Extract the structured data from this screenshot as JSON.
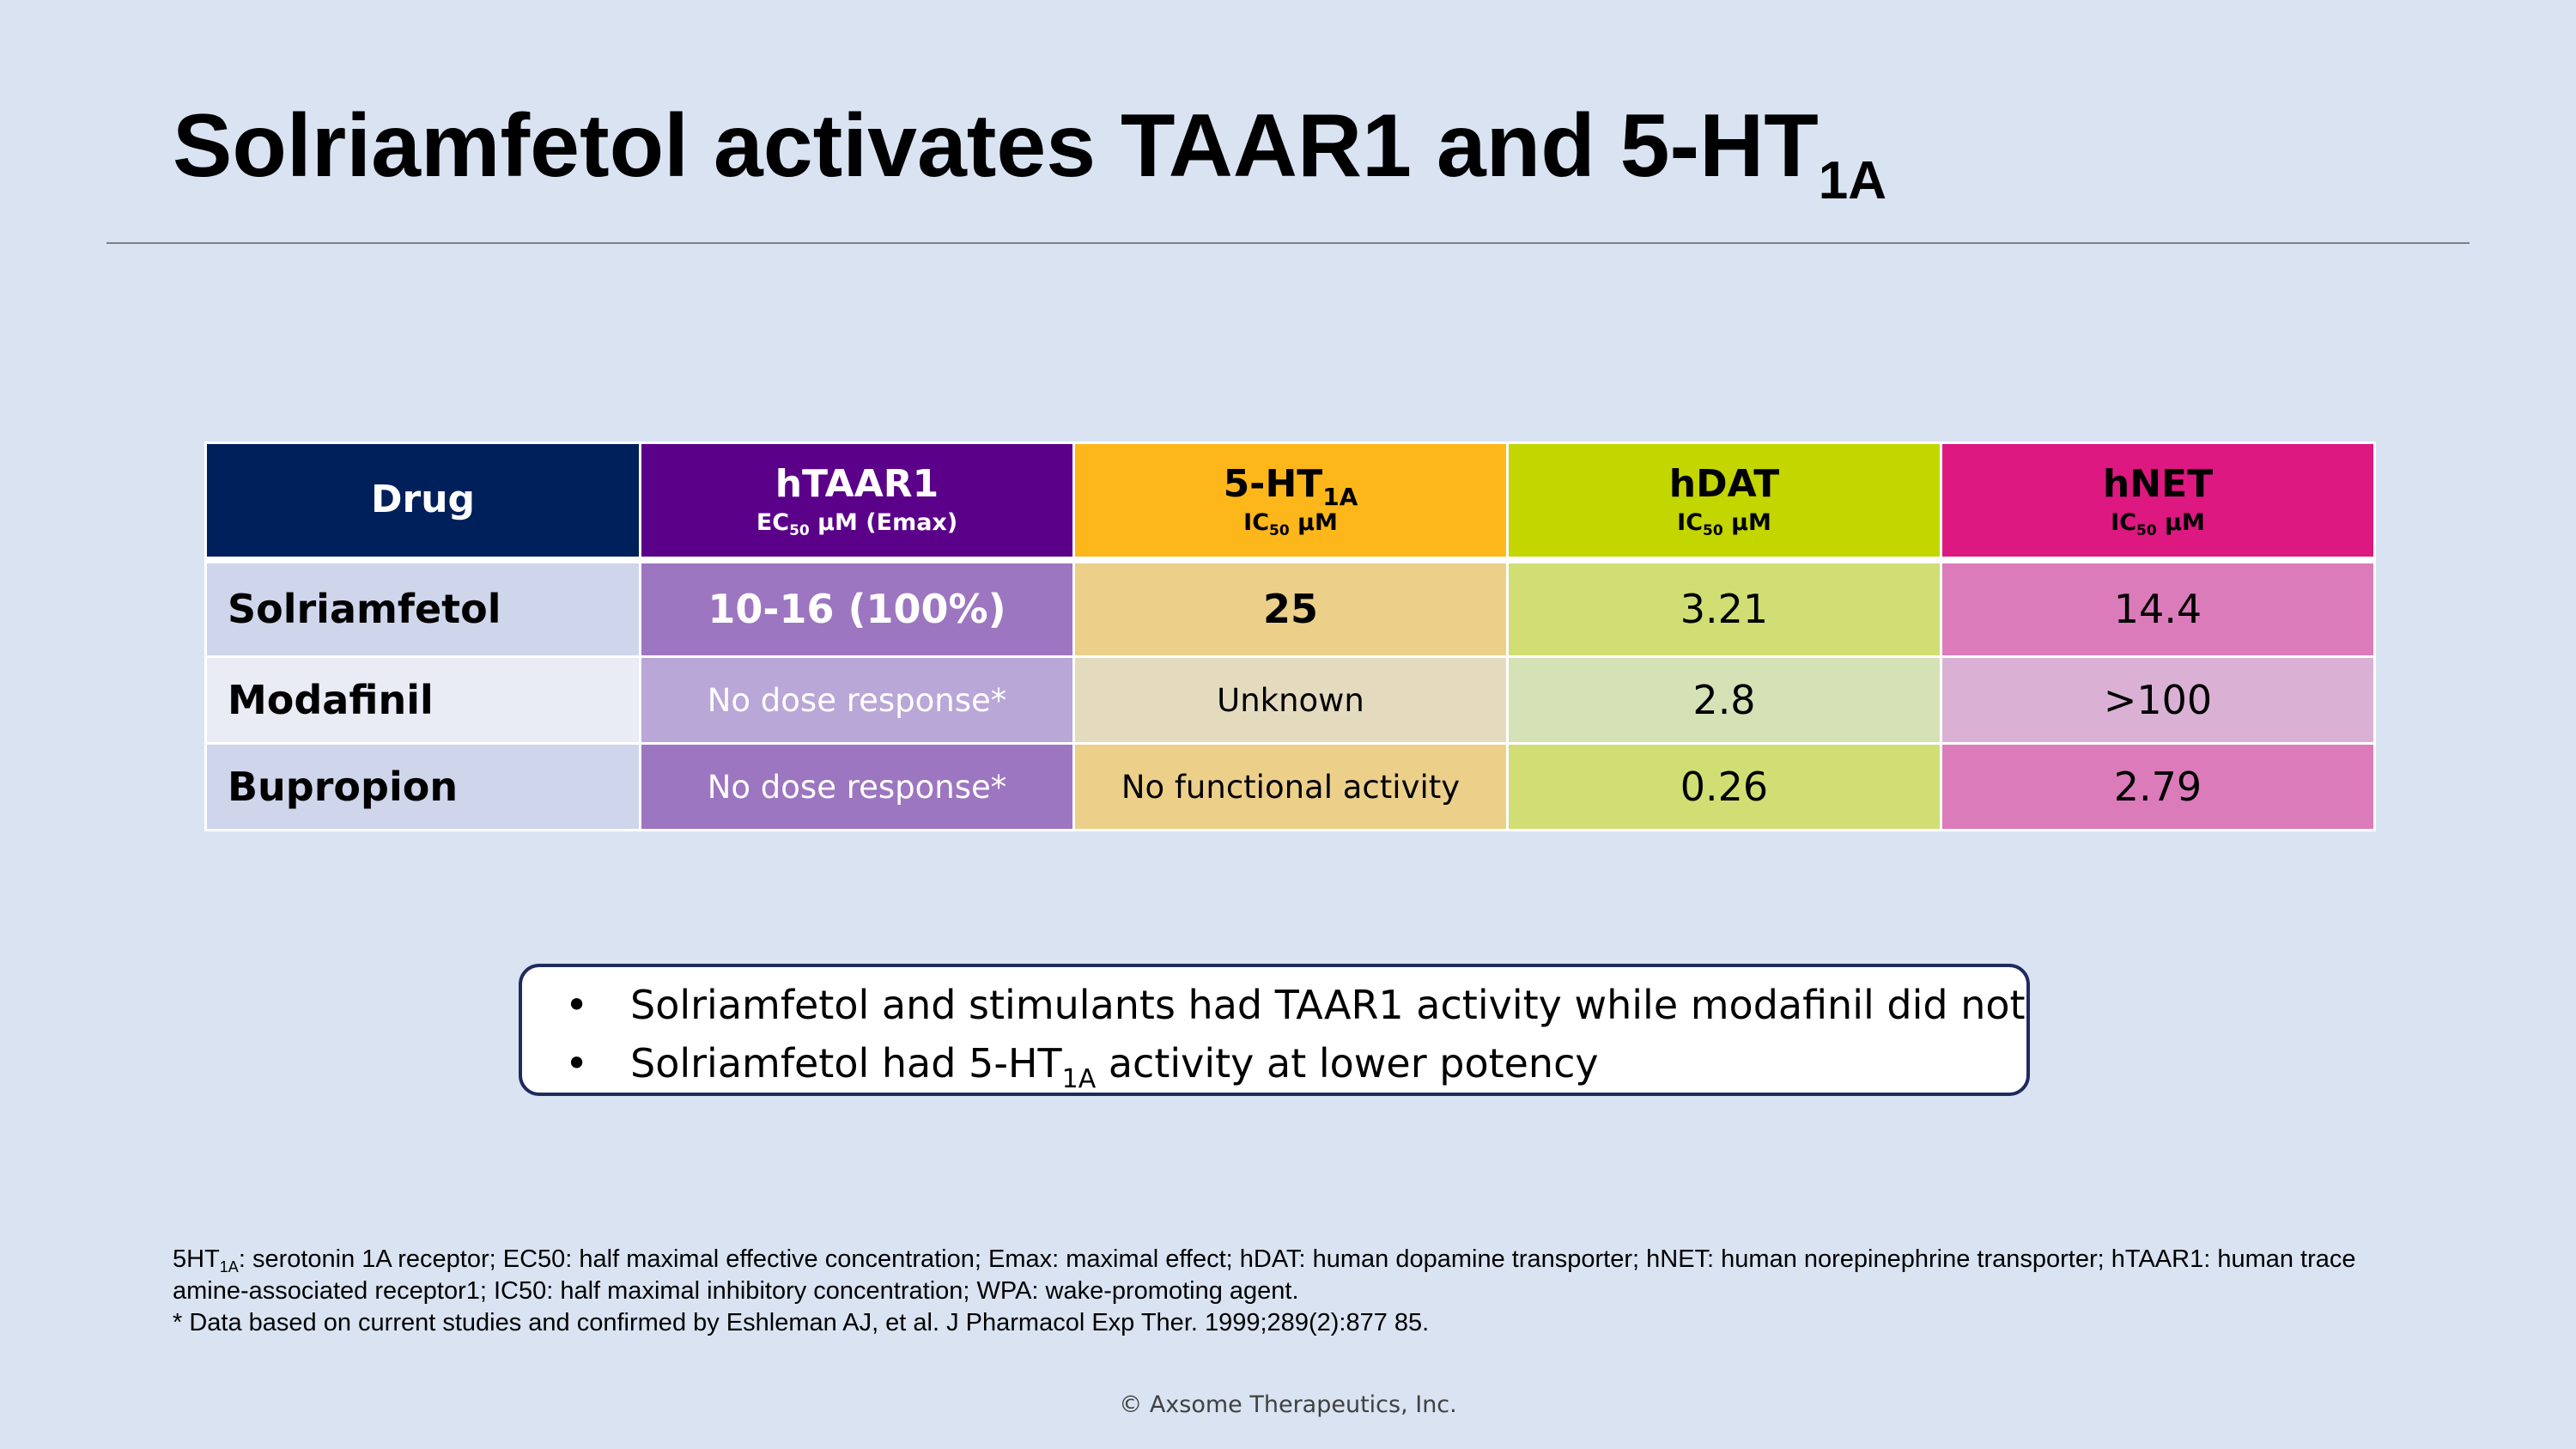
{
  "title": {
    "text": "Solriamfetol activates TAAR1 and 5-HT",
    "sub": "1A"
  },
  "table": {
    "columns": [
      {
        "name": "Drug",
        "name_sub": "",
        "unit_pre": "",
        "unit_sub": "",
        "unit_post": "",
        "header_bg": "#00205b",
        "header_fg": "#ffffff"
      },
      {
        "name": "hTAAR1",
        "name_sub": "",
        "unit_pre": "EC",
        "unit_sub": "50",
        "unit_post": " µM (Emax)",
        "header_bg": "#5b0089",
        "header_fg": "#ffffff"
      },
      {
        "name": "5-HT",
        "name_sub": "1A",
        "unit_pre": "IC",
        "unit_sub": "50",
        "unit_post": " µM",
        "header_bg": "#fdb71a",
        "header_fg": "#000000"
      },
      {
        "name": "hDAT",
        "name_sub": "",
        "unit_pre": "IC",
        "unit_sub": "50",
        "unit_post": " µM",
        "header_bg": "#c3d600",
        "header_fg": "#000000"
      },
      {
        "name": "hNET",
        "name_sub": "",
        "unit_pre": "IC",
        "unit_sub": "50",
        "unit_post": " µM",
        "header_bg": "#dd1880",
        "header_fg": "#000000"
      }
    ],
    "rows": [
      {
        "drug": "Solriamfetol",
        "htaar1": "10-16 (100%)",
        "ht1a": "25",
        "hdat": "3.21",
        "hnet": "14.4"
      },
      {
        "drug": "Modafinil",
        "htaar1": "No dose response*",
        "ht1a": "Unknown",
        "hdat": "2.8",
        "hnet": ">100"
      },
      {
        "drug": "Bupropion",
        "htaar1": "No dose response*",
        "ht1a": "No functional activity",
        "hdat": "0.26",
        "hnet": "2.79"
      }
    ],
    "cell_colors": [
      [
        "#cfd5ea",
        "#9c76c0",
        "#ecd08a",
        "#d0de74",
        "#dc7bba"
      ],
      [
        "#e9ebf5",
        "#b9a7d7",
        "#e4dbbf",
        "#d4e2b6",
        "#dab1d5"
      ],
      [
        "#cfd5ea",
        "#9c76c0",
        "#ecd08a",
        "#d0de74",
        "#dc7bba"
      ]
    ]
  },
  "callout": {
    "bullet": "•",
    "item1": "Solriamfetol and stimulants had TAAR1 activity while modafinil did not",
    "item2_pre": "Solriamfetol had 5-HT",
    "item2_sub": "1A",
    "item2_post": " activity at lower potency"
  },
  "footnotes": {
    "line1_pre": "5HT",
    "line1_sub": "1A",
    "line1_post": ": serotonin 1A receptor; EC50: half maximal effective concentration; Emax: maximal effect; hDAT: human dopamine transporter; hNET: human norepinephrine transporter; hTAAR1: human trace amine-associated receptor1; IC50: half maximal inhibitory concentration; WPA: wake-promoting agent.",
    "line2": "* Data based on current studies and confirmed by Eshleman AJ, et al. J Pharmacol Exp Ther. 1999;289(2):877 85."
  },
  "copyright": "© Axsome Therapeutics, Inc."
}
